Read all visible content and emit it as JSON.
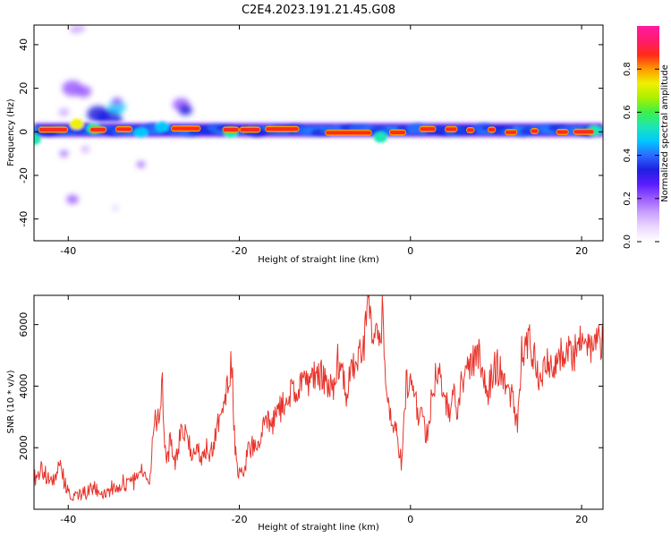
{
  "title": "C2E4.2023.191.21.45.G08",
  "colors": {
    "snr_line": "#e8332a",
    "frame": "#000000",
    "colormap": [
      "#ffffff",
      "#ecd9ff",
      "#c9a2ff",
      "#9b5cff",
      "#5a1cff",
      "#1f1fe0",
      "#2b6bff",
      "#00c8ff",
      "#1ee6b4",
      "#3cf04a",
      "#aaf000",
      "#f0f000",
      "#ff9a00",
      "#ff2a1a",
      "#ff1a6e",
      "#ff1aa0"
    ]
  },
  "chart_data": [
    {
      "type": "heatmap",
      "title": "C2E4.2023.191.21.45.G08",
      "xlabel": "Height of straight line (km)",
      "ylabel": "Frequency (Hz)",
      "xlim": [
        -44,
        22.5
      ],
      "ylim": [
        -50,
        49
      ],
      "x_ticks": [
        -40,
        -20,
        0,
        20
      ],
      "y_ticks": [
        -40,
        -20,
        0,
        20,
        40
      ],
      "colorbar": {
        "label": "Normalized spectral amplitude",
        "range": [
          0,
          1
        ],
        "ticks": [
          "0.0",
          "0.2",
          "0.4",
          "0.6",
          "0.8"
        ],
        "tick_values": [
          0,
          0.2,
          0.4,
          0.6,
          0.8
        ]
      },
      "grid": false,
      "band": {
        "center_hz": 0.8,
        "stretches": [
          {
            "x": [
              -43.5,
              -40
            ],
            "f": 1.0
          },
          {
            "x": [
              -37.5,
              -35.5
            ],
            "f": 1.0
          },
          {
            "x": [
              -34.5,
              -32.5
            ],
            "f": 1.2
          },
          {
            "x": [
              -28,
              -24.5
            ],
            "f": 1.5
          },
          {
            "x": [
              -22,
              -20
            ],
            "f": 1.0
          },
          {
            "x": [
              -20,
              -17.5
            ],
            "f": 1.0
          },
          {
            "x": [
              -17,
              -13
            ],
            "f": 1.3
          },
          {
            "x": [
              -10,
              -4.5
            ],
            "f": -0.4
          },
          {
            "x": [
              -2.5,
              -0.5
            ],
            "f": -0.3
          },
          {
            "x": [
              1,
              3
            ],
            "f": 1.3
          },
          {
            "x": [
              4,
              5.5
            ],
            "f": 1.2
          },
          {
            "x": [
              6.5,
              7.5
            ],
            "f": 0.8
          },
          {
            "x": [
              9,
              10
            ],
            "f": 1.0
          },
          {
            "x": [
              11,
              12.5
            ],
            "f": -0.2
          },
          {
            "x": [
              14,
              15
            ],
            "f": 0.3
          },
          {
            "x": [
              17,
              18.5
            ],
            "f": -0.1
          },
          {
            "x": [
              19,
              21.5
            ],
            "f": 0.0
          }
        ],
        "spots": [
          {
            "x": -44,
            "f": -3.5,
            "v": 0.55
          },
          {
            "x": -39,
            "f": 3.5,
            "v": 0.7
          },
          {
            "x": -37,
            "f": 1.5,
            "v": 0.5
          },
          {
            "x": -31.5,
            "f": -0.5,
            "v": 0.45
          },
          {
            "x": -29,
            "f": 2.5,
            "v": 0.45
          },
          {
            "x": -21,
            "f": -0.5,
            "v": 0.55
          },
          {
            "x": -3.5,
            "f": -2.5,
            "v": 0.5
          },
          {
            "x": 0.5,
            "f": 1.5,
            "v": 0.4
          },
          {
            "x": 21.5,
            "f": 0.5,
            "v": 0.55
          }
        ]
      },
      "scatter_blobs": [
        {
          "x": -39.5,
          "f": 20,
          "r": 1.2,
          "v": 0.18
        },
        {
          "x": -38.2,
          "f": 18.5,
          "r": 0.9,
          "v": 0.22
        },
        {
          "x": -36.5,
          "f": 8,
          "r": 1.3,
          "v": 0.35
        },
        {
          "x": -35.2,
          "f": 5.5,
          "r": 1.5,
          "v": 0.3
        },
        {
          "x": -34.3,
          "f": 11.5,
          "r": 1.0,
          "v": 0.45
        },
        {
          "x": -34.3,
          "f": 14,
          "r": 0.6,
          "v": 0.22
        },
        {
          "x": -39.2,
          "f": 47,
          "r": 0.6,
          "v": 0.12
        },
        {
          "x": -38.5,
          "f": 47.5,
          "r": 0.5,
          "v": 0.12
        },
        {
          "x": -40.5,
          "f": 9,
          "r": 0.6,
          "v": 0.15
        },
        {
          "x": -26.8,
          "f": 12.5,
          "r": 1.0,
          "v": 0.2
        },
        {
          "x": -26.3,
          "f": 10,
          "r": 0.8,
          "v": 0.3
        },
        {
          "x": -40.5,
          "f": -10,
          "r": 0.5,
          "v": 0.18
        },
        {
          "x": -39.5,
          "f": -31,
          "r": 0.7,
          "v": 0.18
        },
        {
          "x": -31.5,
          "f": -15,
          "r": 0.5,
          "v": 0.2
        },
        {
          "x": -38,
          "f": -8,
          "r": 0.5,
          "v": 0.15
        },
        {
          "x": -34.5,
          "f": -35,
          "r": 0.3,
          "v": 0.15
        }
      ]
    },
    {
      "type": "line",
      "xlabel": "Height of straight line (km)",
      "ylabel": "SNR (10 * v/v)",
      "xlim": [
        -44,
        22.5
      ],
      "ylim": [
        0,
        6950
      ],
      "x_ticks": [
        -40,
        -20,
        0,
        20
      ],
      "y_ticks": [
        2000,
        4000,
        6000
      ],
      "grid": false,
      "series": [
        {
          "x": [
            -44,
            -43,
            -42,
            -41,
            -40,
            -39,
            -38,
            -37,
            -36,
            -35,
            -34,
            -33,
            -32,
            -31.5,
            -31,
            -30.5,
            -30,
            -29.5,
            -29,
            -28.8,
            -28.5,
            -28,
            -27.5,
            -27,
            -26.5,
            -26,
            -25.5,
            -25,
            -24.5,
            -24,
            -23.5,
            -23,
            -22.5,
            -22,
            -21.5,
            -21,
            -20.8,
            -20.5,
            -20,
            -19.5,
            -19,
            -18,
            -17,
            -16,
            -15,
            -14,
            -13,
            -12,
            -11,
            -10,
            -9,
            -8.5,
            -8,
            -7.5,
            -7,
            -6,
            -5.5,
            -5,
            -4.7,
            -4.5,
            -4,
            -3.5,
            -3.3,
            -3,
            -2.5,
            -2,
            -1.8,
            -1.5,
            -1,
            -0.5,
            0,
            0.5,
            1,
            1.5,
            2,
            2.5,
            3,
            3.5,
            4,
            4.5,
            5,
            5.5,
            6,
            7,
            8,
            9,
            10,
            11,
            12,
            12.5,
            13,
            14,
            15,
            16,
            17,
            18,
            19,
            20,
            21,
            22,
            22.5
          ],
          "y": [
            1000,
            1300,
            800,
            1400,
            500,
            400,
            500,
            650,
            550,
            700,
            800,
            900,
            900,
            1400,
            1200,
            700,
            2700,
            3000,
            4200,
            2500,
            1500,
            2300,
            1400,
            2300,
            2600,
            2100,
            1900,
            2200,
            1700,
            2000,
            1800,
            2200,
            2900,
            3100,
            3800,
            4600,
            4200,
            1800,
            1200,
            1200,
            1900,
            2200,
            2700,
            2900,
            3300,
            3800,
            4100,
            4000,
            4500,
            4200,
            4000,
            4800,
            4900,
            3600,
            4500,
            5000,
            5200,
            6800,
            6300,
            5100,
            5500,
            5600,
            6600,
            5000,
            3200,
            2400,
            2800,
            2000,
            1500,
            4000,
            4200,
            3800,
            3000,
            2800,
            2400,
            3800,
            4400,
            4200,
            3700,
            3200,
            3800,
            2900,
            4200,
            4600,
            5100,
            3800,
            4700,
            4200,
            3600,
            2600,
            5200,
            5400,
            4400,
            4800,
            4700,
            5300,
            5000,
            5400,
            5200,
            5600,
            5400
          ]
        }
      ]
    }
  ]
}
